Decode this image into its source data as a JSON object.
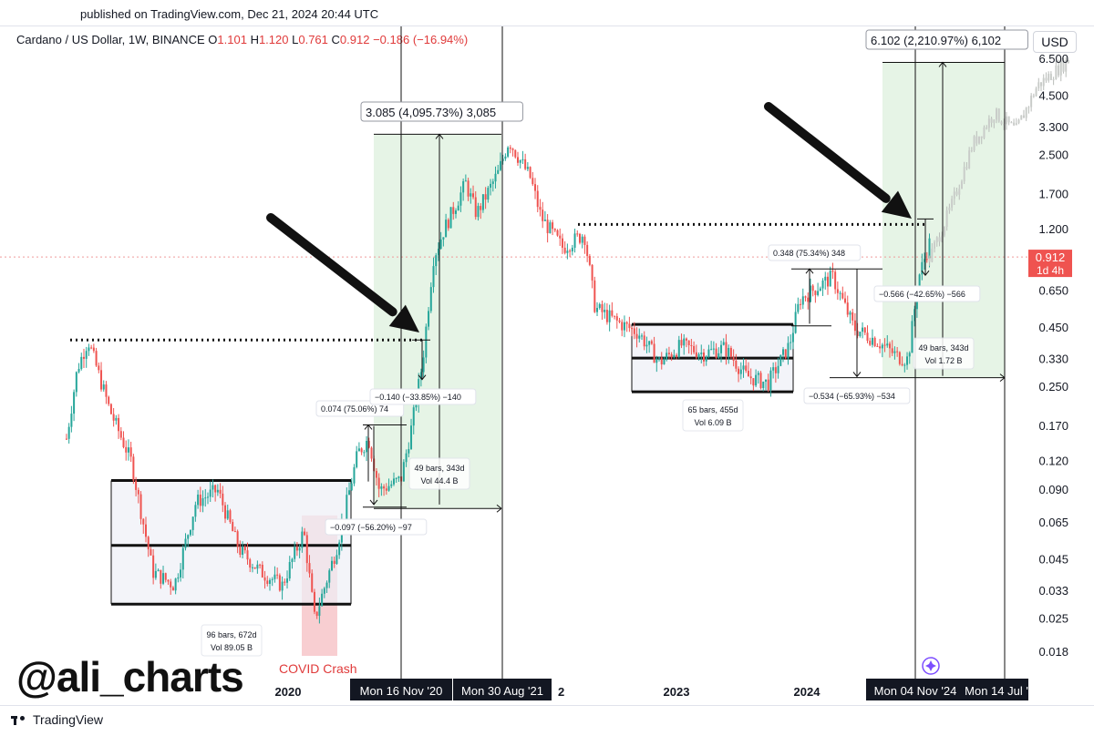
{
  "header": {
    "published": "published on TradingView.com, Dec 21, 2024 20:44 UTC",
    "symbol": "Cardano / US Dollar, 1W, BINANCE",
    "o_label": "O",
    "o_value": "1.101",
    "h_label": "H",
    "h_value": "1.120",
    "l_label": "L",
    "l_value": "0.761",
    "c_label": "C",
    "c_value": "0.912",
    "change": "−0.186 (−16.94%)"
  },
  "currency": "USD",
  "watermark": "@ali_charts",
  "footer": {
    "brand": "TradingView"
  },
  "colors": {
    "up": "#26a69a",
    "down": "#ef5350",
    "green_zone": "#e6f4e6",
    "red_zone": "#f7c6c9",
    "price_tag": "#ef5350"
  },
  "chart_data": {
    "type": "candlestick",
    "scale": "log",
    "ylim": [
      0.015,
      8
    ],
    "y_ticks": [
      "6.500",
      "4.500",
      "3.300",
      "2.500",
      "1.700",
      "1.200",
      "0.650",
      "0.450",
      "0.330",
      "0.250",
      "0.170",
      "0.120",
      "0.090",
      "0.065",
      "0.045",
      "0.033",
      "0.025",
      "0.018"
    ],
    "x_ticks": [
      "2020",
      "2023",
      "2024"
    ],
    "x_markers": [
      "Mon 16 Nov '20",
      "Mon 30 Aug '21",
      "2",
      "Mon 04 Nov '24",
      "Mon 14 Jul '"
    ],
    "current_price": {
      "value": "0.912",
      "countdown": "1d 4h"
    },
    "path": [
      [
        "2018-04",
        0.15
      ],
      [
        "2018-05",
        0.3
      ],
      [
        "2018-06",
        0.4
      ],
      [
        "2018-08",
        0.2
      ],
      [
        "2018-10",
        0.12
      ],
      [
        "2018-12",
        0.04
      ],
      [
        "2019-02",
        0.035
      ],
      [
        "2019-04",
        0.08
      ],
      [
        "2019-06",
        0.09
      ],
      [
        "2019-08",
        0.05
      ],
      [
        "2019-10",
        0.04
      ],
      [
        "2019-12",
        0.035
      ],
      [
        "2020-02",
        0.06
      ],
      [
        "2020-03",
        0.025
      ],
      [
        "2020-05",
        0.05
      ],
      [
        "2020-07",
        0.13
      ],
      [
        "2020-08",
        0.15
      ],
      [
        "2020-09",
        0.09
      ],
      [
        "2020-11",
        0.1
      ],
      [
        "2020-12",
        0.17
      ],
      [
        "2021-01",
        0.32
      ],
      [
        "2021-02",
        0.9
      ],
      [
        "2021-03",
        1.2
      ],
      [
        "2021-05",
        1.9
      ],
      [
        "2021-06",
        1.4
      ],
      [
        "2021-08",
        2.1
      ],
      [
        "2021-09",
        2.9
      ],
      [
        "2021-11",
        2.0
      ],
      [
        "2021-12",
        1.35
      ],
      [
        "2022-02",
        1.0
      ],
      [
        "2022-04",
        1.15
      ],
      [
        "2022-05",
        0.55
      ],
      [
        "2022-07",
        0.48
      ],
      [
        "2022-09",
        0.43
      ],
      [
        "2022-11",
        0.32
      ],
      [
        "2023-01",
        0.38
      ],
      [
        "2023-03",
        0.35
      ],
      [
        "2023-05",
        0.37
      ],
      [
        "2023-07",
        0.28
      ],
      [
        "2023-09",
        0.26
      ],
      [
        "2023-11",
        0.38
      ],
      [
        "2023-12",
        0.6
      ],
      [
        "2024-03",
        0.75
      ],
      [
        "2024-05",
        0.45
      ],
      [
        "2024-07",
        0.4
      ],
      [
        "2024-09",
        0.34
      ],
      [
        "2024-10",
        0.33
      ],
      [
        "2024-11",
        0.75
      ],
      [
        "2024-12",
        1.05
      ],
      [
        "2024-12-21",
        0.912
      ]
    ],
    "projection": [
      [
        "2024-12",
        0.9
      ],
      [
        "2025-02",
        1.5
      ],
      [
        "2025-04",
        2.8
      ],
      [
        "2025-06",
        3.8
      ],
      [
        "2025-08",
        3.2
      ],
      [
        "2025-10",
        5.0
      ],
      [
        "2026-01",
        6.5
      ]
    ],
    "range_boxes": [
      {
        "label": "96 bars, 672d",
        "vol": "Vol 89.05 B"
      },
      {
        "label": "65 bars, 455d",
        "vol": "Vol 6.09 B"
      }
    ],
    "measurements": [
      {
        "text": "3.085 (4,095.73%) 3,085"
      },
      {
        "text": "6.102 (2,210.97%) 6,102"
      },
      {
        "text": "0.074 (75.06%) 74"
      },
      {
        "text": "−0.140 (−33.85%) −140"
      },
      {
        "text": "−0.097 (−56.20%) −97"
      },
      {
        "text": "0.348 (75.34%) 348"
      },
      {
        "text": "−0.566 (−42.65%) −566"
      },
      {
        "text": "−0.534 (−65.93%) −534"
      }
    ],
    "bar_stats": [
      {
        "bars": "49 bars, 343d",
        "vol": "Vol 44.4 B"
      },
      {
        "bars": "49 bars, 343d",
        "vol": "Vol 1.72 B"
      }
    ],
    "annotation": "COVID Crash"
  }
}
